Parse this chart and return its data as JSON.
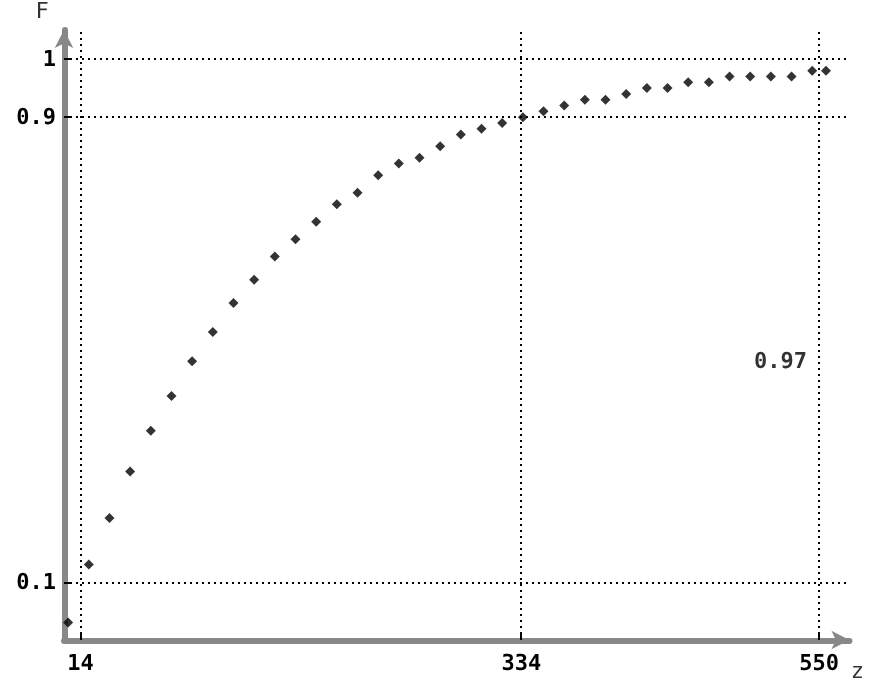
{
  "chart_data": {
    "type": "scatter",
    "xlabel": "z",
    "ylabel": "F",
    "x": [
      5,
      20,
      35,
      50,
      65,
      80,
      95,
      110,
      125,
      140,
      155,
      170,
      185,
      200,
      215,
      230,
      245,
      260,
      275,
      290,
      305,
      320,
      335,
      350,
      365,
      380,
      395,
      410,
      425,
      440,
      455,
      470,
      485,
      500,
      515,
      530,
      545,
      555
    ],
    "series": [
      {
        "color": "#000000",
        "values": [
          0.03,
          0.13,
          0.21,
          0.29,
          0.36,
          0.42,
          0.48,
          0.53,
          0.58,
          0.62,
          0.66,
          0.69,
          0.72,
          0.75,
          0.77,
          0.8,
          0.82,
          0.83,
          0.85,
          0.87,
          0.88,
          0.89,
          0.9,
          0.91,
          0.92,
          0.93,
          0.93,
          0.94,
          0.95,
          0.95,
          0.96,
          0.96,
          0.97,
          0.97,
          0.97,
          0.97,
          0.98,
          0.98
        ]
      }
    ],
    "xlim": [
      2,
      572
    ],
    "ylim": [
      0,
      1.05
    ],
    "xticks": [
      14,
      334,
      550
    ],
    "yticks": [
      0.1,
      0.9,
      1
    ],
    "marker": "diamond",
    "grid": false,
    "ref_lines": [
      {
        "axis": "x",
        "value": 14,
        "line_style": "dotted",
        "color": "#000000"
      },
      {
        "axis": "x",
        "value": 334,
        "line_style": "dotted",
        "color": "#000000"
      },
      {
        "axis": "x",
        "value": 550,
        "line_style": "dotted",
        "color": "#000000"
      },
      {
        "axis": "y",
        "value": 0.1,
        "line_style": "dotted",
        "color": "#000000"
      },
      {
        "axis": "y",
        "value": 0.9,
        "line_style": "dotted",
        "color": "#000000"
      },
      {
        "axis": "y",
        "value": 1,
        "line_style": "dotted",
        "color": "#000000"
      }
    ],
    "annotations": [
      {
        "text": "0.97",
        "x": 550,
        "y": 0.48
      }
    ]
  }
}
